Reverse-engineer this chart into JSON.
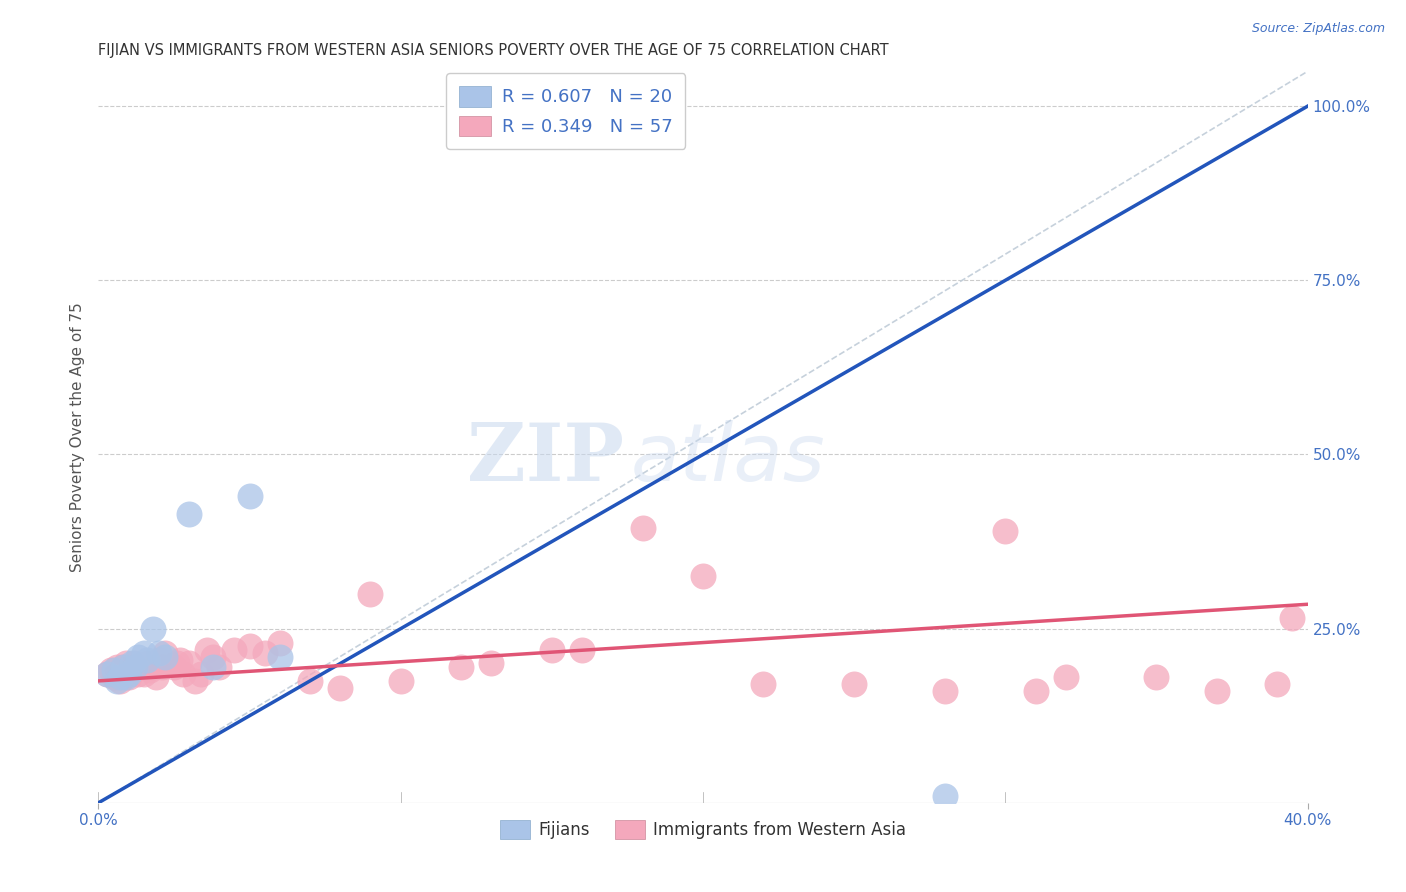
{
  "title": "FIJIAN VS IMMIGRANTS FROM WESTERN ASIA SENIORS POVERTY OVER THE AGE OF 75 CORRELATION CHART",
  "source": "Source: ZipAtlas.com",
  "ylabel": "Seniors Poverty Over the Age of 75",
  "xlim": [
    0.0,
    0.4
  ],
  "ylim": [
    0.0,
    1.05
  ],
  "background_color": "#ffffff",
  "grid_color": "#cccccc",
  "fijian_color": "#aac4e8",
  "immigrant_color": "#f4a8bc",
  "fijian_line_color": "#2255bb",
  "immigrant_line_color": "#e05575",
  "diagonal_color": "#c0ccd8",
  "legend_R1": "R = 0.607",
  "legend_N1": "N = 20",
  "legend_R2": "R = 0.349",
  "legend_N2": "N = 57",
  "legend_label1": "Fijians",
  "legend_label2": "Immigrants from Western Asia",
  "watermark_zip": "ZIP",
  "watermark_atlas": "atlas",
  "fijian_line_x0": 0.0,
  "fijian_line_y0": 0.0,
  "fijian_line_x1": 0.4,
  "fijian_line_y1": 1.0,
  "immigrant_line_x0": 0.0,
  "immigrant_line_y0": 0.175,
  "immigrant_line_x1": 0.4,
  "immigrant_line_y1": 0.285,
  "fijian_x": [
    0.003,
    0.005,
    0.006,
    0.007,
    0.008,
    0.009,
    0.01,
    0.011,
    0.012,
    0.013,
    0.015,
    0.016,
    0.018,
    0.02,
    0.022,
    0.03,
    0.038,
    0.05,
    0.06,
    0.28
  ],
  "fijian_y": [
    0.185,
    0.19,
    0.175,
    0.18,
    0.195,
    0.18,
    0.185,
    0.2,
    0.195,
    0.21,
    0.215,
    0.205,
    0.25,
    0.215,
    0.21,
    0.415,
    0.195,
    0.44,
    0.21,
    0.01
  ],
  "immigrant_x": [
    0.003,
    0.004,
    0.005,
    0.006,
    0.007,
    0.007,
    0.008,
    0.009,
    0.01,
    0.01,
    0.011,
    0.012,
    0.013,
    0.014,
    0.015,
    0.016,
    0.017,
    0.018,
    0.019,
    0.02,
    0.021,
    0.022,
    0.023,
    0.025,
    0.026,
    0.027,
    0.028,
    0.03,
    0.032,
    0.034,
    0.036,
    0.038,
    0.04,
    0.045,
    0.05,
    0.055,
    0.06,
    0.07,
    0.08,
    0.09,
    0.1,
    0.12,
    0.13,
    0.15,
    0.16,
    0.18,
    0.2,
    0.22,
    0.25,
    0.28,
    0.3,
    0.31,
    0.32,
    0.35,
    0.37,
    0.39,
    0.395
  ],
  "immigrant_y": [
    0.185,
    0.19,
    0.18,
    0.195,
    0.185,
    0.175,
    0.195,
    0.2,
    0.185,
    0.18,
    0.19,
    0.2,
    0.185,
    0.195,
    0.185,
    0.2,
    0.19,
    0.195,
    0.18,
    0.205,
    0.195,
    0.215,
    0.2,
    0.195,
    0.2,
    0.205,
    0.185,
    0.2,
    0.175,
    0.185,
    0.22,
    0.21,
    0.195,
    0.22,
    0.225,
    0.215,
    0.23,
    0.175,
    0.165,
    0.3,
    0.175,
    0.195,
    0.2,
    0.22,
    0.22,
    0.395,
    0.325,
    0.17,
    0.17,
    0.16,
    0.39,
    0.16,
    0.18,
    0.18,
    0.16,
    0.17,
    0.265
  ]
}
